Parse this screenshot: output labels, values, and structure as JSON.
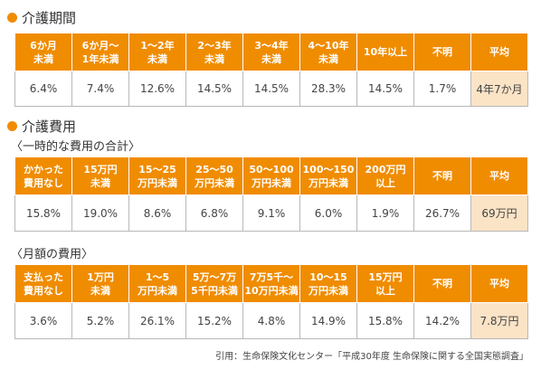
{
  "section1": {
    "title": "介護期間",
    "headers": [
      "6か月\n未満",
      "6か月〜\n1年未満",
      "1〜2年\n未満",
      "2〜3年\n未満",
      "3〜4年\n未満",
      "4〜10年\n未満",
      "10年以上",
      "不明",
      "平均"
    ],
    "values": [
      "6.4%",
      "7.4%",
      "12.6%",
      "14.5%",
      "14.5%",
      "28.3%",
      "14.5%",
      "1.7%",
      "4年7か月"
    ]
  },
  "section2": {
    "title": "介護費用",
    "sub_onetime": "〈一時的な費用の合計〉",
    "onetime": {
      "headers": [
        "かかった\n費用なし",
        "15万円\n未満",
        "15〜25\n万円未満",
        "25〜50\n万円未満",
        "50〜100\n万円未満",
        "100〜150\n万円未満",
        "200万円\n以上",
        "不明",
        "平均"
      ],
      "values": [
        "15.8%",
        "19.0%",
        "8.6%",
        "6.8%",
        "9.1%",
        "6.0%",
        "1.9%",
        "26.7%",
        "69万円"
      ]
    },
    "sub_monthly": "〈月額の費用〉",
    "monthly": {
      "headers": [
        "支払った\n費用なし",
        "1万円\n未満",
        "1〜5\n万円未満",
        "5万〜7万\n5千円未満",
        "7万5千〜\n10万円未満",
        "10〜15\n万円未満",
        "15万円\n以上",
        "不明",
        "平均"
      ],
      "values": [
        "3.6%",
        "5.2%",
        "26.1%",
        "15.2%",
        "4.8%",
        "14.9%",
        "15.8%",
        "14.2%",
        "7.8万円"
      ]
    }
  },
  "source": "引用：生命保険文化センター「平成30年度 生命保険に関する全国実態調査」"
}
